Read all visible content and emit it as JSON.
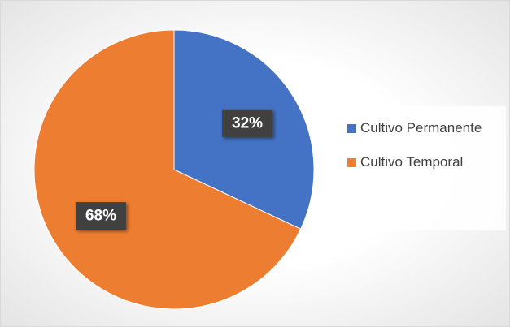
{
  "chart_data": {
    "type": "pie",
    "categories": [
      "Cultivo Permanente",
      "Cultivo Temporal"
    ],
    "values": [
      32,
      68
    ],
    "value_labels": [
      "32%",
      "68%"
    ],
    "colors": [
      "#4472c4",
      "#ed7d31"
    ],
    "legend": "right"
  }
}
